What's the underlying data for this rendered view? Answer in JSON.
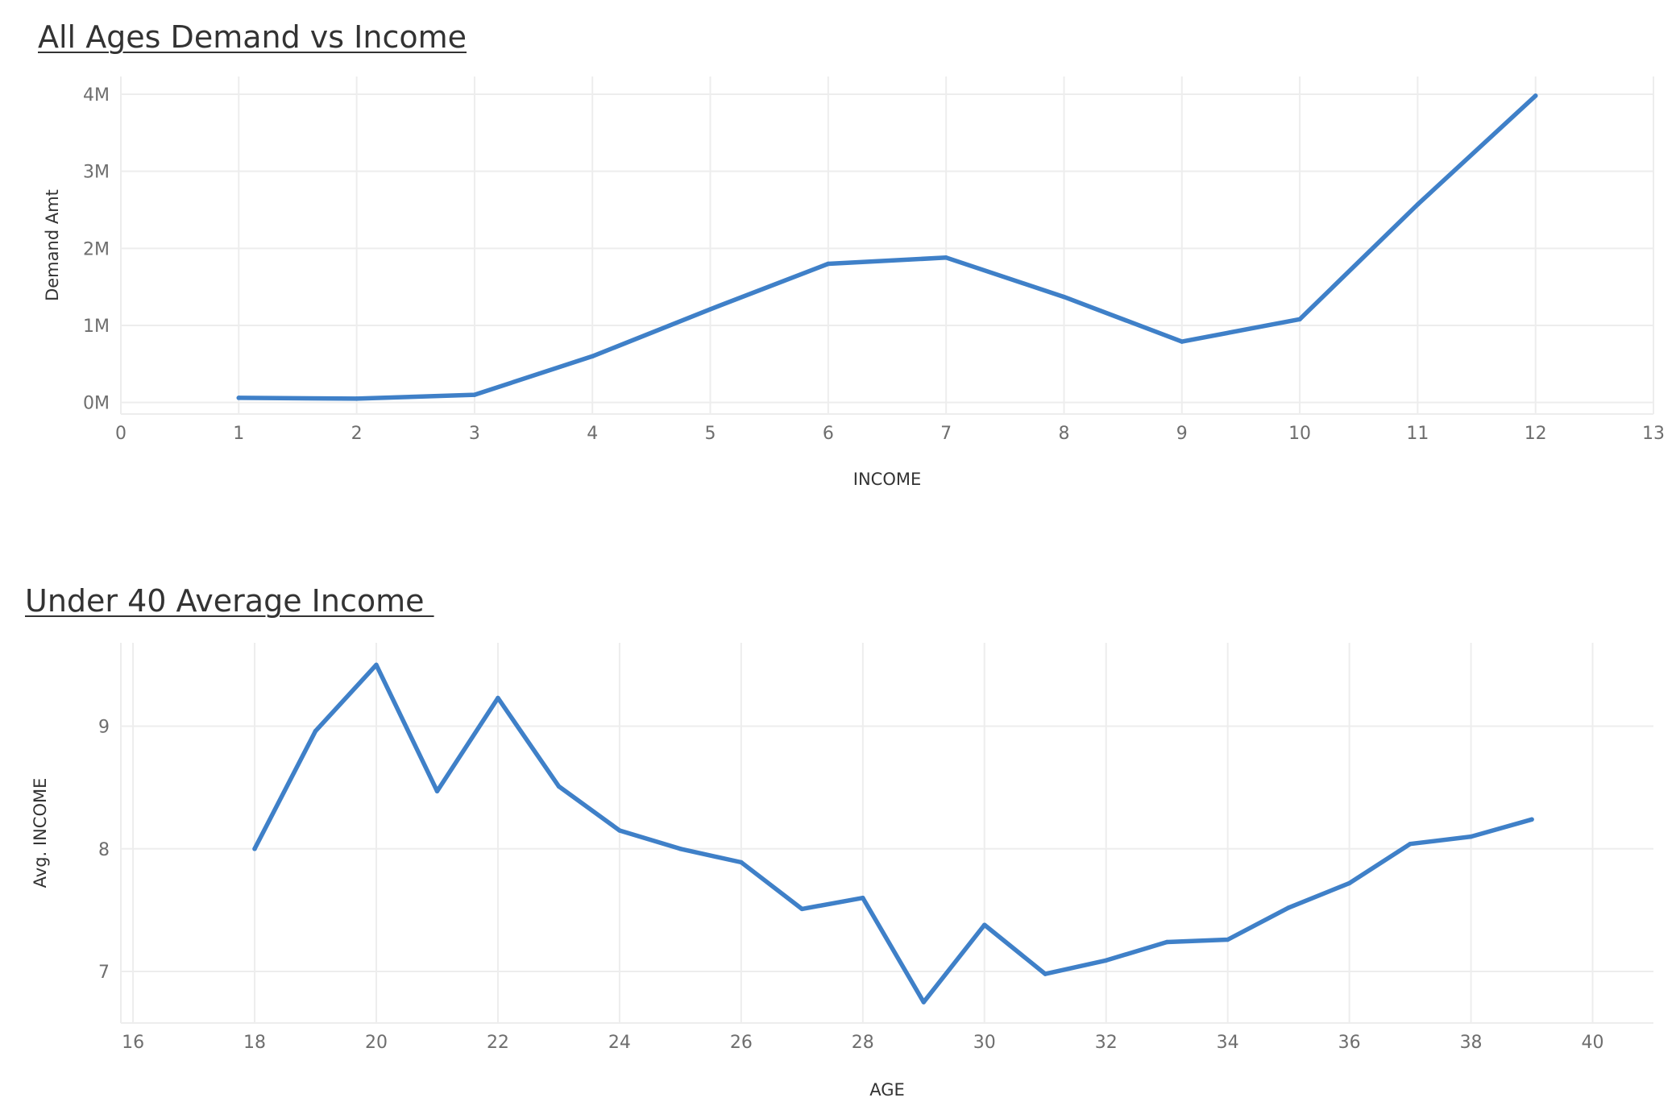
{
  "colors": {
    "series": "#3f80c8",
    "grid": "#ededed",
    "tick_text": "#6e6e6e",
    "title_text": "#333333"
  },
  "chart_data": [
    {
      "type": "line",
      "title": "All Ages Demand vs Income",
      "xlabel": "INCOME",
      "ylabel": "Demand Amt",
      "xlim": [
        0,
        13
      ],
      "ylim": [
        -150000,
        4230000
      ],
      "x_ticks": [
        0,
        1,
        2,
        3,
        4,
        5,
        6,
        7,
        8,
        9,
        10,
        11,
        12,
        13
      ],
      "y_ticks": [
        {
          "value": 0,
          "label": "0M"
        },
        {
          "value": 1000000,
          "label": "1M"
        },
        {
          "value": 2000000,
          "label": "2M"
        },
        {
          "value": 3000000,
          "label": "3M"
        },
        {
          "value": 4000000,
          "label": "4M"
        }
      ],
      "x": [
        1,
        2,
        3,
        4,
        5,
        6,
        7,
        8,
        9,
        10,
        11,
        12
      ],
      "values": [
        60000,
        50000,
        100000,
        600000,
        1210000,
        1800000,
        1880000,
        1370000,
        790000,
        1080000,
        2570000,
        3980000
      ]
    },
    {
      "type": "line",
      "title": "Under 40 Average Income ",
      "xlabel": "AGE",
      "ylabel": "Avg. INCOME",
      "xlim": [
        15.8,
        41
      ],
      "ylim": [
        6.58,
        9.68
      ],
      "x_ticks": [
        16,
        18,
        20,
        22,
        24,
        26,
        28,
        30,
        32,
        34,
        36,
        38,
        40
      ],
      "y_ticks": [
        {
          "value": 7,
          "label": "7"
        },
        {
          "value": 8,
          "label": "8"
        },
        {
          "value": 9,
          "label": "9"
        }
      ],
      "x": [
        18,
        19,
        20,
        21,
        22,
        23,
        24,
        25,
        26,
        27,
        28,
        29,
        30,
        31,
        32,
        33,
        34,
        35,
        36,
        37,
        38,
        39
      ],
      "values": [
        8.0,
        8.96,
        9.5,
        8.47,
        9.23,
        8.51,
        8.15,
        8.0,
        7.89,
        7.51,
        7.6,
        6.75,
        7.38,
        6.98,
        7.09,
        7.24,
        7.26,
        7.52,
        7.72,
        8.04,
        8.1,
        8.24
      ]
    }
  ]
}
